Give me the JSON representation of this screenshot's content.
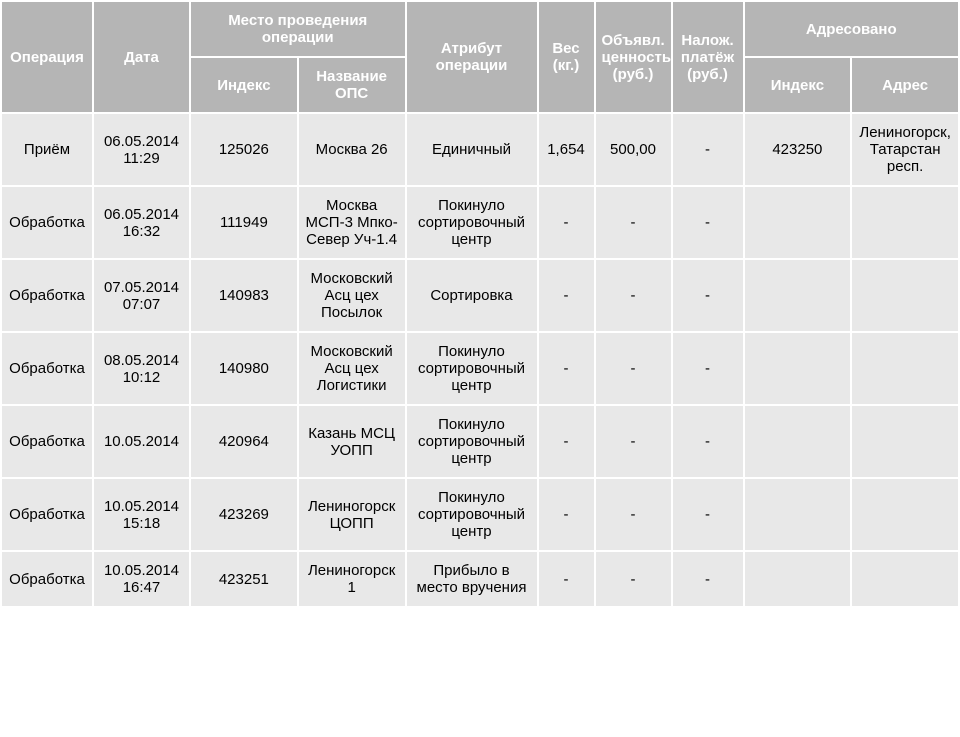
{
  "table": {
    "headers": {
      "operation": "Операция",
      "date": "Дата",
      "place_group": "Место проведения операции",
      "place_index": "Индекс",
      "place_ops": "Название ОПС",
      "attr": "Атрибут операции",
      "weight": "Вес (кг.)",
      "value": "Объявл. ценность (руб.)",
      "cod": "Налож. платёж (руб.)",
      "addressed_group": "Адресовано",
      "addressed_index": "Индекс",
      "addressed_addr": "Адрес"
    },
    "rows": [
      {
        "operation": "Приём",
        "date": "06.05.2014 11:29",
        "index": "125026",
        "ops": "Москва 26",
        "attr": "Единичный",
        "weight": "1,654",
        "value": "500,00",
        "cod": "-",
        "addr_index": "423250",
        "addr": "Лениногорск, Татарстан респ."
      },
      {
        "operation": "Обработка",
        "date": "06.05.2014 16:32",
        "index": "111949",
        "ops": "Москва МСП-3 Мпко-Север Уч-1.4",
        "attr": "Покинуло сортировочный центр",
        "weight": "-",
        "value": "-",
        "cod": "-",
        "addr_index": "",
        "addr": ""
      },
      {
        "operation": "Обработка",
        "date": "07.05.2014 07:07",
        "index": "140983",
        "ops": "Московский Асц цех Посылок",
        "attr": "Сортировка",
        "weight": "-",
        "value": "-",
        "cod": "-",
        "addr_index": "",
        "addr": ""
      },
      {
        "operation": "Обработка",
        "date": "08.05.2014 10:12",
        "index": "140980",
        "ops": "Московский Асц цех Логистики",
        "attr": "Покинуло сортировочный центр",
        "weight": "-",
        "value": "-",
        "cod": "-",
        "addr_index": "",
        "addr": ""
      },
      {
        "operation": "Обработка",
        "date": "10.05.2014",
        "index": "420964",
        "ops": "Казань МСЦ УОПП",
        "attr": "Покинуло сортировочный центр",
        "weight": "-",
        "value": "-",
        "cod": "-",
        "addr_index": "",
        "addr": ""
      },
      {
        "operation": "Обработка",
        "date": "10.05.2014 15:18",
        "index": "423269",
        "ops": "Лениногорск ЦОПП",
        "attr": "Покинуло сортировочный центр",
        "weight": "-",
        "value": "-",
        "cod": "-",
        "addr_index": "",
        "addr": ""
      },
      {
        "operation": "Обработка",
        "date": "10.05.2014 16:47",
        "index": "423251",
        "ops": "Лениногорск 1",
        "attr": "Прибыло в место вручения",
        "weight": "-",
        "value": "-",
        "cod": "-",
        "addr_index": "",
        "addr": ""
      }
    ],
    "style": {
      "header_bg": "#b5b5b5",
      "header_fg": "#ffffff",
      "cell_bg": "#e8e8e8",
      "cell_fg": "#000000",
      "border_spacing": 2,
      "font_family": "Arial",
      "header_font_size": 15,
      "cell_font_size": 15
    }
  }
}
